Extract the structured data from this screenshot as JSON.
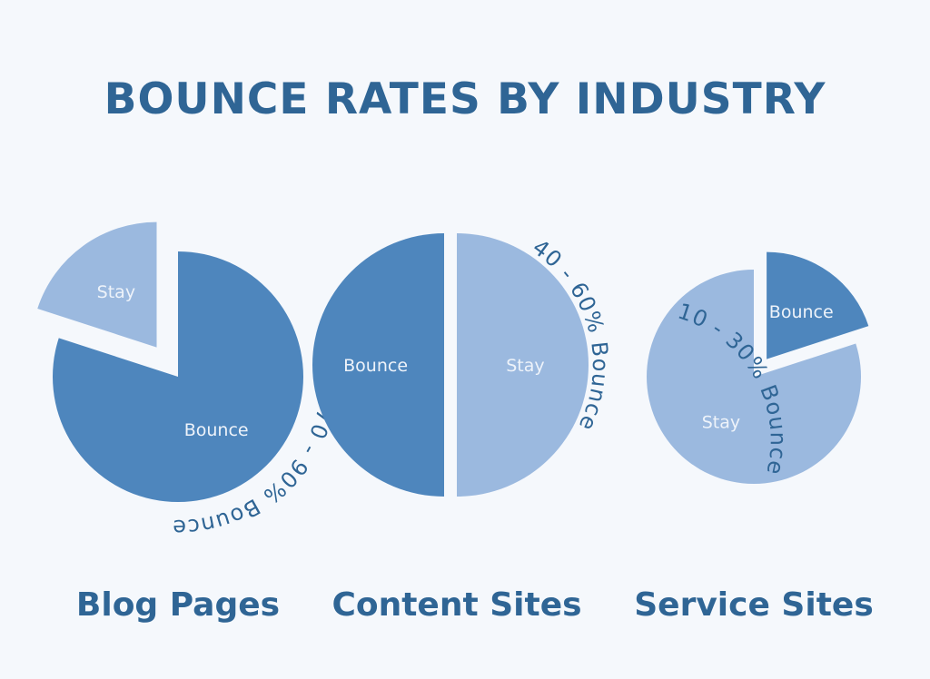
{
  "title": "BOUNCE RATES BY INDUSTRY",
  "colors": {
    "background": "#f5f8fc",
    "title": "#2f6595",
    "bounce": "#4e86bd",
    "stay": "#9bb9df",
    "slice_label": "#eef3fa",
    "arc_label": "#2f6595"
  },
  "chart_data": [
    {
      "type": "pie",
      "title": "Blog Pages",
      "categories": [
        "Stay",
        "Bounce"
      ],
      "values": [
        20,
        80
      ],
      "annotation": "70 - 90% Bounce",
      "exploded": "Stay"
    },
    {
      "type": "pie",
      "title": "Content Sites",
      "categories": [
        "Stay",
        "Bounce"
      ],
      "values": [
        50,
        50
      ],
      "annotation": "40 - 60% Bounce",
      "exploded": "Bounce"
    },
    {
      "type": "pie",
      "title": "Service Sites",
      "categories": [
        "Bounce",
        "Stay"
      ],
      "values": [
        20,
        80
      ],
      "annotation": "10 - 30% Bounce",
      "exploded": "Bounce"
    }
  ]
}
